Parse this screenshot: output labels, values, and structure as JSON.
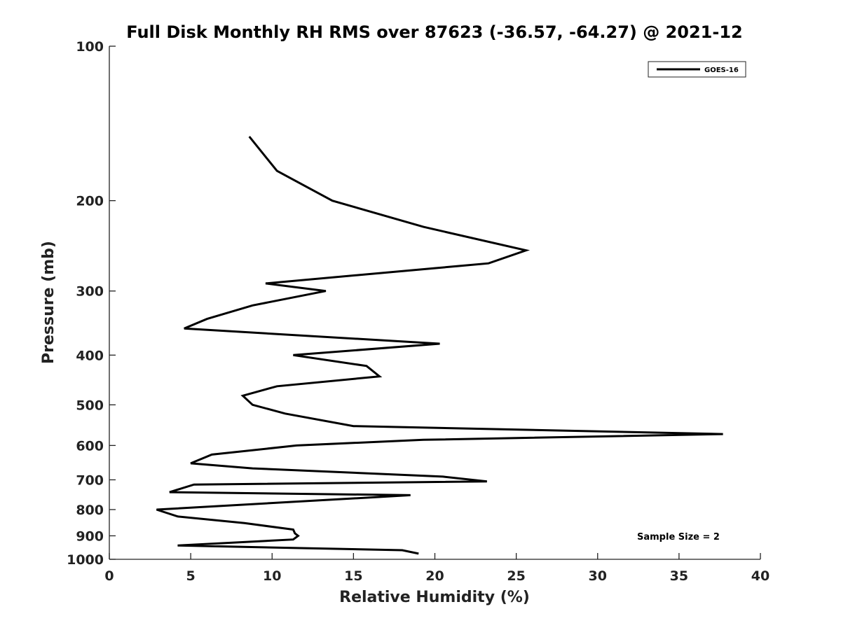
{
  "chart_data": {
    "type": "line",
    "title": "Full Disk Monthly RH RMS over 87623 (-36.57, -64.27) @ 2021-12",
    "xlabel": "Relative Humidity (%)",
    "ylabel": "Pressure (mb)",
    "xlim": [
      0,
      40
    ],
    "ylim": [
      100,
      1000
    ],
    "y_scale": "log",
    "y_reversed": true,
    "x_ticks": [
      "0",
      "5",
      "10",
      "15",
      "20",
      "25",
      "30",
      "35",
      "40"
    ],
    "y_ticks": [
      "100",
      "200",
      "300",
      "400",
      "500",
      "600",
      "700",
      "800",
      "900",
      "1000"
    ],
    "grid": false,
    "legend_position": "top-right",
    "annotation": "Sample Size = 2",
    "series": [
      {
        "name": "GOES-16",
        "color": "#000000",
        "points": [
          [
            8.6,
            150
          ],
          [
            10.3,
            175
          ],
          [
            13.7,
            200
          ],
          [
            19.3,
            225
          ],
          [
            25.6,
            250
          ],
          [
            23.3,
            265
          ],
          [
            9.6,
            290
          ],
          [
            13.3,
            300
          ],
          [
            8.8,
            320
          ],
          [
            6.0,
            340
          ],
          [
            4.6,
            355
          ],
          [
            20.3,
            380
          ],
          [
            11.3,
            400
          ],
          [
            15.8,
            420
          ],
          [
            16.6,
            440
          ],
          [
            10.3,
            460
          ],
          [
            8.2,
            480
          ],
          [
            8.8,
            500
          ],
          [
            10.8,
            520
          ],
          [
            15.0,
            550
          ],
          [
            37.7,
            570
          ],
          [
            19.3,
            585
          ],
          [
            11.5,
            600
          ],
          [
            6.3,
            625
          ],
          [
            5.0,
            650
          ],
          [
            8.8,
            665
          ],
          [
            20.5,
            690
          ],
          [
            23.2,
            705
          ],
          [
            5.2,
            715
          ],
          [
            3.7,
            740
          ],
          [
            18.5,
            750
          ],
          [
            2.9,
            800
          ],
          [
            4.2,
            825
          ],
          [
            8.3,
            850
          ],
          [
            11.3,
            875
          ],
          [
            11.4,
            890
          ],
          [
            11.6,
            900
          ],
          [
            11.3,
            915
          ],
          [
            4.2,
            940
          ],
          [
            18.0,
            960
          ],
          [
            19.0,
            975
          ]
        ]
      }
    ]
  }
}
